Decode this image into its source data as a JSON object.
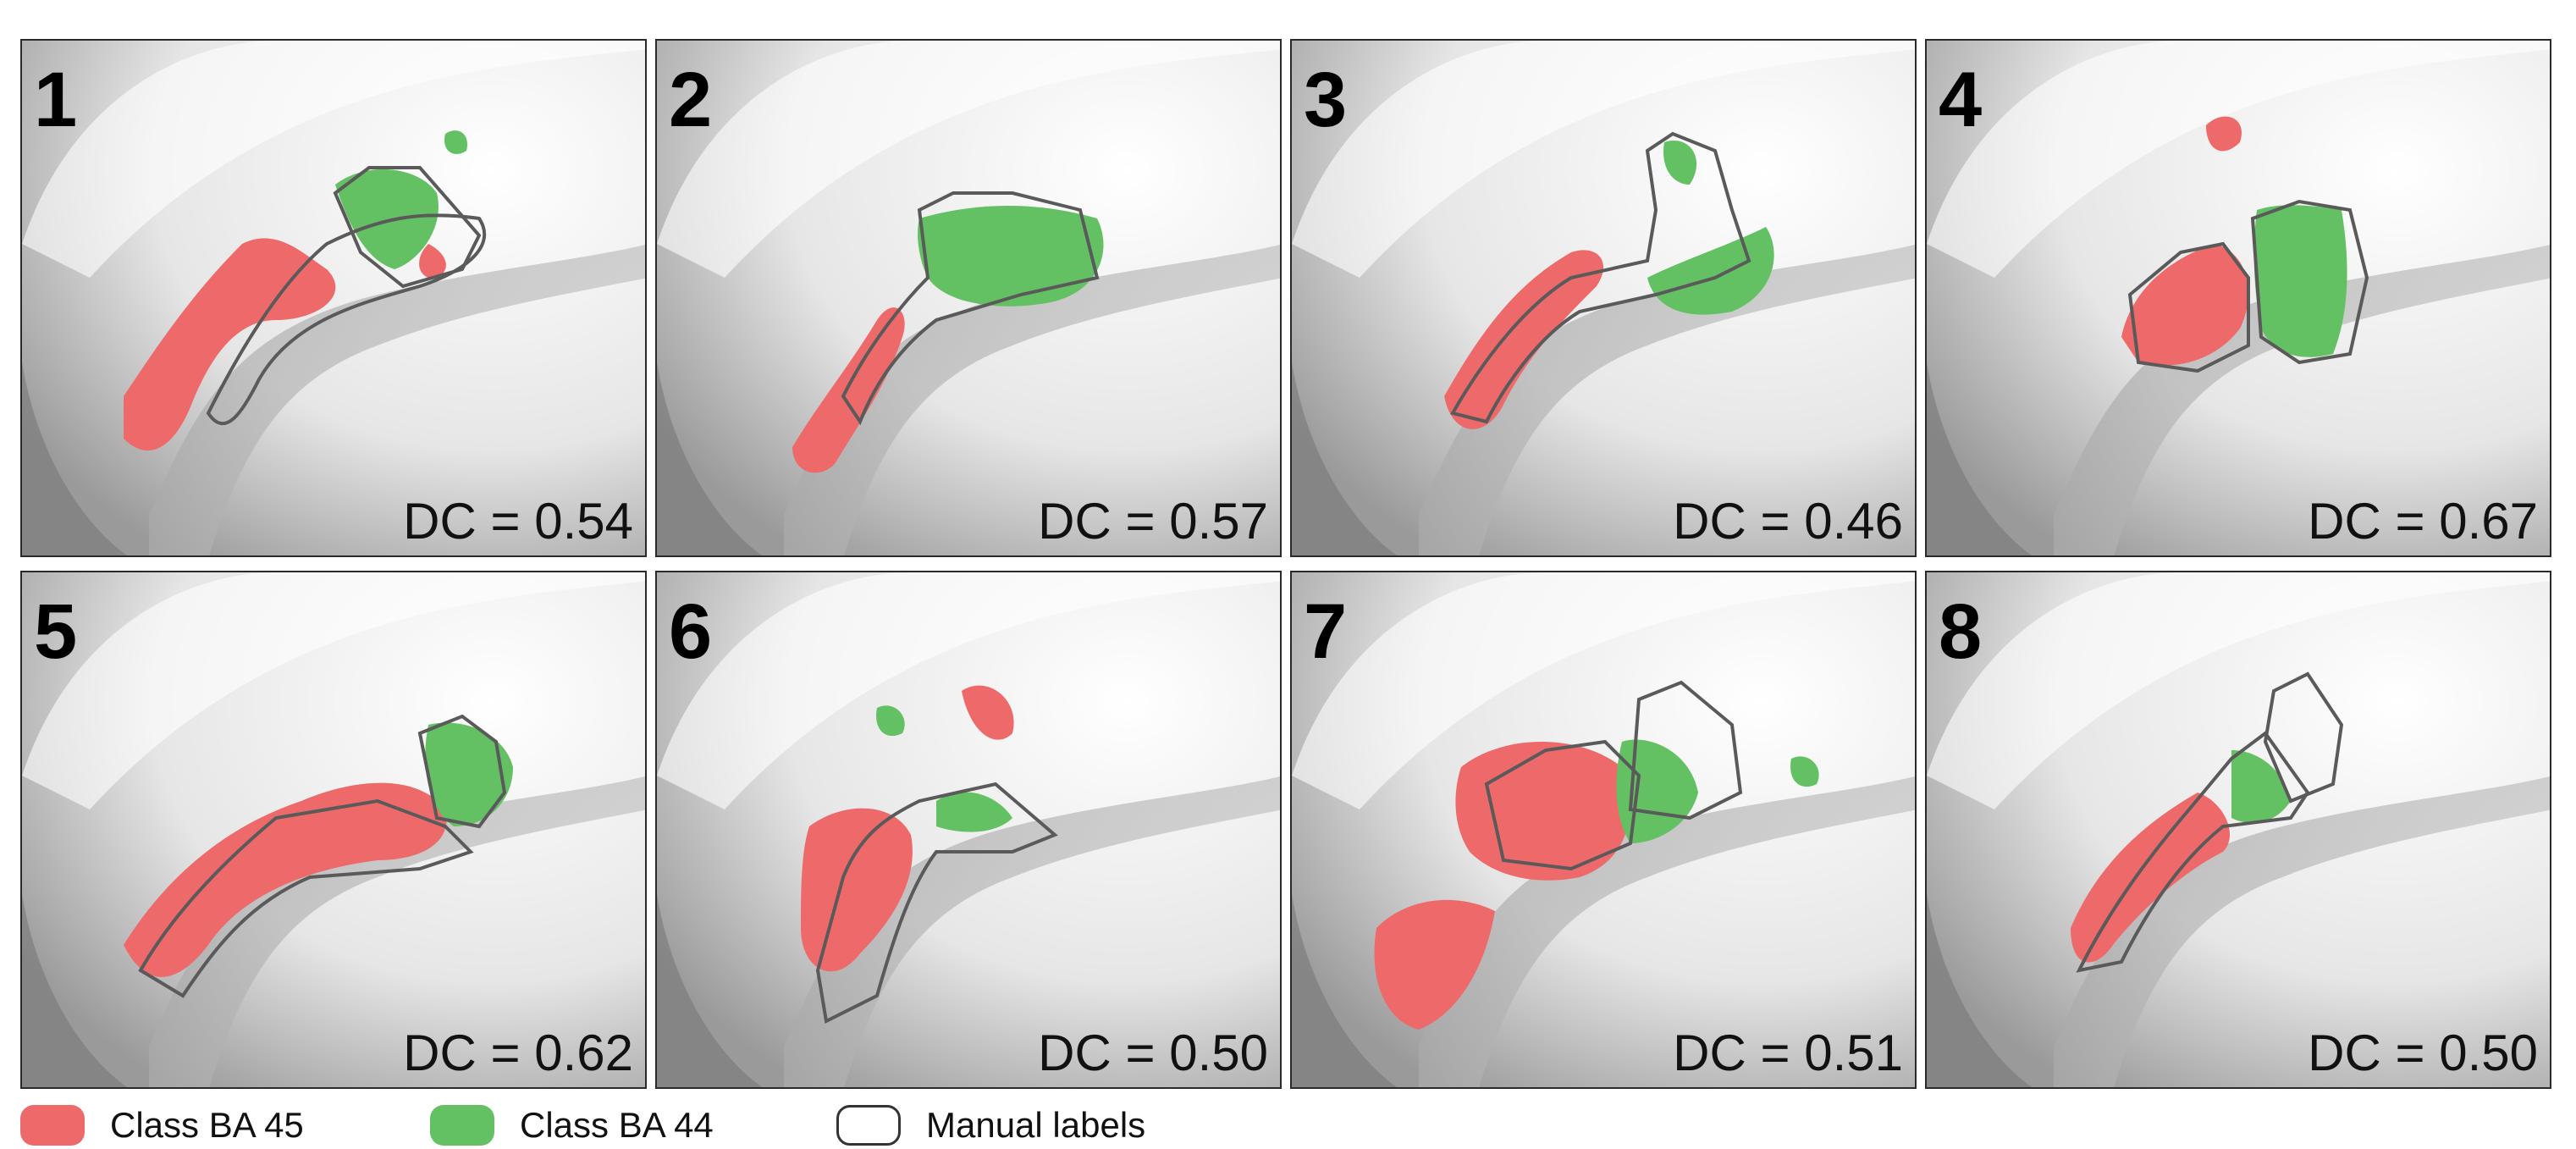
{
  "colors": {
    "class_ba45": "#ee6a6a",
    "class_ba44": "#63c163",
    "manual_outline": "#5a5a5a",
    "panel_border": "#2a2a2a"
  },
  "panels": [
    {
      "number": "1",
      "dc": "DC = 0.54"
    },
    {
      "number": "2",
      "dc": "DC = 0.57"
    },
    {
      "number": "3",
      "dc": "DC = 0.46"
    },
    {
      "number": "4",
      "dc": "DC = 0.67"
    },
    {
      "number": "5",
      "dc": "DC = 0.62"
    },
    {
      "number": "6",
      "dc": "DC = 0.50"
    },
    {
      "number": "7",
      "dc": "DC = 0.51"
    },
    {
      "number": "8",
      "dc": "DC = 0.50"
    }
  ],
  "legend": {
    "class_ba45": "Class BA 45",
    "class_ba44": "Class BA 44",
    "manual_labels": "Manual labels"
  }
}
